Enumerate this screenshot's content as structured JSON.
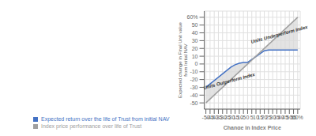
{
  "chart_data": {
    "type": "line",
    "xlabel": "Change in Index Price",
    "ylabel": "Expected change in Final Unit value\nfrom Initial NAV",
    "xlim": [
      -52,
      63
    ],
    "ylim": [
      -58,
      68
    ],
    "xticks": [
      -50,
      -45,
      -40,
      -35,
      -30,
      -25,
      -20,
      -15,
      -10,
      -5,
      0,
      5,
      10,
      15,
      20,
      25,
      30,
      35,
      40,
      45,
      50,
      55,
      {
        "value": 60,
        "label": "60%"
      }
    ],
    "yticks": [
      -50,
      -40,
      -30,
      -20,
      -10,
      0,
      10,
      20,
      30,
      40,
      50,
      {
        "value": 60,
        "label": "60%"
      }
    ],
    "grid": true,
    "legend": "bottom",
    "series": [
      {
        "name": "Expected return over the life of Trust from initial NAV",
        "color": "#4472C4",
        "x": [
          -50,
          -20,
          -15,
          -10,
          -5,
          0,
          20,
          25,
          60
        ],
        "values": [
          -30,
          -4,
          -1,
          1,
          2,
          2,
          17,
          18,
          18
        ]
      },
      {
        "name": "Index price performance over life of Trust",
        "color": "#a0a0a0",
        "x": [
          -50,
          60
        ],
        "values": [
          -50,
          60
        ]
      }
    ],
    "annotations": [
      {
        "text": "Units Outperform Index",
        "x": -22,
        "y": -22
      },
      {
        "text": "Units Underperform Index",
        "x": 38,
        "y": 38
      }
    ]
  }
}
